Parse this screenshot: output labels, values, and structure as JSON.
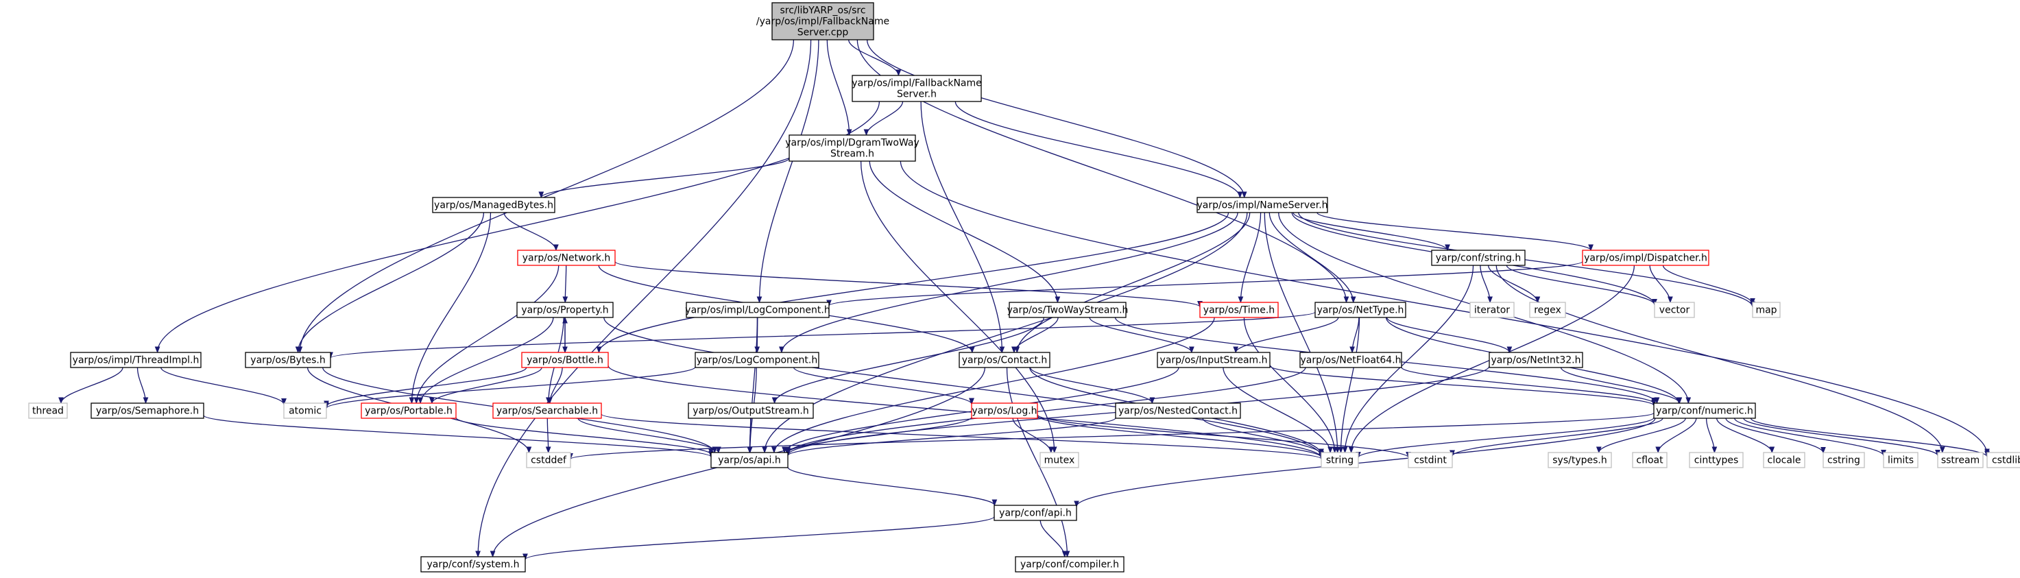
{
  "diagram": {
    "title": "",
    "colors": {
      "edge": "#191970",
      "root_fill": "#bfbfbf",
      "root_border": "#000000",
      "node_border": "#000000",
      "truncated_border": "#ff0000",
      "external_border": "#bfbfbf",
      "external_text": "#000000",
      "node_fill": "#ffffff"
    },
    "nodes": [
      {
        "id": "root",
        "kind": "root",
        "lines": [
          "src/libYARP_os/src",
          "/yarp/os/impl/FallbackName",
          "Server.cpp"
        ]
      },
      {
        "id": "fallback_h",
        "kind": "normal",
        "lines": [
          "yarp/os/impl/FallbackName",
          "Server.h"
        ]
      },
      {
        "id": "dgram",
        "kind": "normal",
        "lines": [
          "yarp/os/impl/DgramTwoWay",
          "Stream.h"
        ]
      },
      {
        "id": "managedbytes",
        "kind": "normal",
        "lines": [
          "yarp/os/ManagedBytes.h"
        ]
      },
      {
        "id": "nameserver",
        "kind": "normal",
        "lines": [
          "yarp/os/impl/NameServer.h"
        ]
      },
      {
        "id": "network",
        "kind": "truncated",
        "lines": [
          "yarp/os/Network.h"
        ]
      },
      {
        "id": "confstring",
        "kind": "normal",
        "lines": [
          "yarp/conf/string.h"
        ]
      },
      {
        "id": "dispatcher",
        "kind": "truncated",
        "lines": [
          "yarp/os/impl/Dispatcher.h"
        ]
      },
      {
        "id": "property",
        "kind": "normal",
        "lines": [
          "yarp/os/Property.h"
        ]
      },
      {
        "id": "logcomp_impl",
        "kind": "normal",
        "lines": [
          "yarp/os/impl/LogComponent.h"
        ]
      },
      {
        "id": "twowaystream",
        "kind": "normal",
        "lines": [
          "yarp/os/TwoWayStream.h"
        ]
      },
      {
        "id": "time",
        "kind": "truncated",
        "lines": [
          "yarp/os/Time.h"
        ]
      },
      {
        "id": "nettype",
        "kind": "normal",
        "lines": [
          "yarp/os/NetType.h"
        ]
      },
      {
        "id": "iterator",
        "kind": "external",
        "lines": [
          "iterator"
        ]
      },
      {
        "id": "regex",
        "kind": "external",
        "lines": [
          "regex"
        ]
      },
      {
        "id": "vector",
        "kind": "external",
        "lines": [
          "vector"
        ]
      },
      {
        "id": "map",
        "kind": "external",
        "lines": [
          "map"
        ]
      },
      {
        "id": "threadimpl",
        "kind": "normal",
        "lines": [
          "yarp/os/impl/ThreadImpl.h"
        ]
      },
      {
        "id": "bytes",
        "kind": "normal",
        "lines": [
          "yarp/os/Bytes.h"
        ]
      },
      {
        "id": "bottle",
        "kind": "truncated",
        "lines": [
          "yarp/os/Bottle.h"
        ]
      },
      {
        "id": "logcomp",
        "kind": "normal",
        "lines": [
          "yarp/os/LogComponent.h"
        ]
      },
      {
        "id": "contact",
        "kind": "normal",
        "lines": [
          "yarp/os/Contact.h"
        ]
      },
      {
        "id": "inputstream",
        "kind": "normal",
        "lines": [
          "yarp/os/InputStream.h"
        ]
      },
      {
        "id": "netfloat64",
        "kind": "normal",
        "lines": [
          "yarp/os/NetFloat64.h"
        ]
      },
      {
        "id": "netint32",
        "kind": "normal",
        "lines": [
          "yarp/os/NetInt32.h"
        ]
      },
      {
        "id": "thread",
        "kind": "external",
        "lines": [
          "thread"
        ]
      },
      {
        "id": "semaphore",
        "kind": "normal",
        "lines": [
          "yarp/os/Semaphore.h"
        ]
      },
      {
        "id": "atomic",
        "kind": "external",
        "lines": [
          "atomic"
        ]
      },
      {
        "id": "portable",
        "kind": "truncated",
        "lines": [
          "yarp/os/Portable.h"
        ]
      },
      {
        "id": "searchable",
        "kind": "truncated",
        "lines": [
          "yarp/os/Searchable.h"
        ]
      },
      {
        "id": "outputstream",
        "kind": "normal",
        "lines": [
          "yarp/os/OutputStream.h"
        ]
      },
      {
        "id": "log",
        "kind": "truncated",
        "lines": [
          "yarp/os/Log.h"
        ]
      },
      {
        "id": "nestedcontact",
        "kind": "normal",
        "lines": [
          "yarp/os/NestedContact.h"
        ]
      },
      {
        "id": "numeric",
        "kind": "normal",
        "lines": [
          "yarp/conf/numeric.h"
        ]
      },
      {
        "id": "cstddef",
        "kind": "external",
        "lines": [
          "cstddef"
        ]
      },
      {
        "id": "api",
        "kind": "normal",
        "lines": [
          "yarp/os/api.h"
        ]
      },
      {
        "id": "mutex",
        "kind": "external",
        "lines": [
          "mutex"
        ]
      },
      {
        "id": "string",
        "kind": "external",
        "lines": [
          "string"
        ]
      },
      {
        "id": "cstdint",
        "kind": "external",
        "lines": [
          "cstdint"
        ]
      },
      {
        "id": "systypes",
        "kind": "external",
        "lines": [
          "sys/types.h"
        ]
      },
      {
        "id": "cfloat",
        "kind": "external",
        "lines": [
          "cfloat"
        ]
      },
      {
        "id": "cinttypes",
        "kind": "external",
        "lines": [
          "cinttypes"
        ]
      },
      {
        "id": "clocale",
        "kind": "external",
        "lines": [
          "clocale"
        ]
      },
      {
        "id": "cstring",
        "kind": "external",
        "lines": [
          "cstring"
        ]
      },
      {
        "id": "limits",
        "kind": "external",
        "lines": [
          "limits"
        ]
      },
      {
        "id": "sstream",
        "kind": "external",
        "lines": [
          "sstream"
        ]
      },
      {
        "id": "cstdlib",
        "kind": "external",
        "lines": [
          "cstdlib"
        ]
      },
      {
        "id": "confapi",
        "kind": "normal",
        "lines": [
          "yarp/conf/api.h"
        ]
      },
      {
        "id": "confsystem",
        "kind": "normal",
        "lines": [
          "yarp/conf/system.h"
        ]
      },
      {
        "id": "confcompiler",
        "kind": "normal",
        "lines": [
          "yarp/conf/compiler.h"
        ]
      }
    ],
    "edges": [
      [
        "root",
        "fallback_h"
      ],
      [
        "root",
        "dgram"
      ],
      [
        "root",
        "nameserver"
      ],
      [
        "root",
        "logcomp_impl"
      ],
      [
        "root",
        "nettype"
      ],
      [
        "root",
        "bytes"
      ],
      [
        "root",
        "confsystem"
      ],
      [
        "fallback_h",
        "dgram"
      ],
      [
        "fallback_h",
        "nameserver"
      ],
      [
        "fallback_h",
        "contact"
      ],
      [
        "fallback_h",
        "threadimpl"
      ],
      [
        "dgram",
        "managedbytes"
      ],
      [
        "dgram",
        "twowaystream"
      ],
      [
        "dgram",
        "mutex"
      ],
      [
        "dgram",
        "cstdlib"
      ],
      [
        "managedbytes",
        "network"
      ],
      [
        "managedbytes",
        "bytes"
      ],
      [
        "managedbytes",
        "portable"
      ],
      [
        "network",
        "property"
      ],
      [
        "network",
        "time"
      ],
      [
        "network",
        "contact"
      ],
      [
        "network",
        "portable"
      ],
      [
        "nameserver",
        "confstring"
      ],
      [
        "nameserver",
        "dispatcher"
      ],
      [
        "nameserver",
        "time"
      ],
      [
        "nameserver",
        "nettype"
      ],
      [
        "nameserver",
        "contact"
      ],
      [
        "nameserver",
        "logcomp"
      ],
      [
        "nameserver",
        "bottle"
      ],
      [
        "nameserver",
        "vector"
      ],
      [
        "nameserver",
        "map"
      ],
      [
        "nameserver",
        "string"
      ],
      [
        "nameserver",
        "numeric"
      ],
      [
        "nameserver",
        "api"
      ],
      [
        "confstring",
        "iterator"
      ],
      [
        "confstring",
        "regex"
      ],
      [
        "confstring",
        "vector"
      ],
      [
        "confstring",
        "string"
      ],
      [
        "confstring",
        "sstream"
      ],
      [
        "dispatcher",
        "vector"
      ],
      [
        "dispatcher",
        "map"
      ],
      [
        "dispatcher",
        "string"
      ],
      [
        "dispatcher",
        "logcomp_impl"
      ],
      [
        "property",
        "bottle"
      ],
      [
        "property",
        "searchable"
      ],
      [
        "property",
        "portable"
      ],
      [
        "property",
        "string"
      ],
      [
        "logcomp_impl",
        "logcomp"
      ],
      [
        "logcomp_impl",
        "api"
      ],
      [
        "twowaystream",
        "contact"
      ],
      [
        "twowaystream",
        "inputstream"
      ],
      [
        "twowaystream",
        "outputstream"
      ],
      [
        "twowaystream",
        "numeric"
      ],
      [
        "time",
        "api"
      ],
      [
        "time",
        "string"
      ],
      [
        "nettype",
        "inputstream"
      ],
      [
        "nettype",
        "netfloat64"
      ],
      [
        "nettype",
        "netint32"
      ],
      [
        "nettype",
        "string"
      ],
      [
        "nettype",
        "bytes"
      ],
      [
        "nettype",
        "numeric"
      ],
      [
        "threadimpl",
        "thread"
      ],
      [
        "threadimpl",
        "semaphore"
      ],
      [
        "threadimpl",
        "atomic"
      ],
      [
        "bytes",
        "api"
      ],
      [
        "bytes",
        "cstddef"
      ],
      [
        "bottle",
        "property"
      ],
      [
        "bottle",
        "searchable"
      ],
      [
        "bottle",
        "portable"
      ],
      [
        "bottle",
        "string"
      ],
      [
        "bottle",
        "atomic"
      ],
      [
        "logcomp",
        "log"
      ],
      [
        "logcomp",
        "api"
      ],
      [
        "logcomp",
        "atomic"
      ],
      [
        "contact",
        "nestedcontact"
      ],
      [
        "contact",
        "string"
      ],
      [
        "contact",
        "confsystem"
      ],
      [
        "contact",
        "confcompiler"
      ],
      [
        "inputstream",
        "api"
      ],
      [
        "inputstream",
        "numeric"
      ],
      [
        "inputstream",
        "string"
      ],
      [
        "netfloat64",
        "numeric"
      ],
      [
        "netfloat64",
        "api"
      ],
      [
        "netint32",
        "numeric"
      ],
      [
        "netint32",
        "api"
      ],
      [
        "semaphore",
        "api"
      ],
      [
        "portable",
        "api"
      ],
      [
        "searchable",
        "api"
      ],
      [
        "searchable",
        "cstddef"
      ],
      [
        "searchable",
        "string"
      ],
      [
        "outputstream",
        "api"
      ],
      [
        "log",
        "api"
      ],
      [
        "log",
        "mutex"
      ],
      [
        "log",
        "cstdint"
      ],
      [
        "log",
        "string"
      ],
      [
        "nestedcontact",
        "api"
      ],
      [
        "nestedcontact",
        "string"
      ],
      [
        "numeric",
        "string"
      ],
      [
        "numeric",
        "cstdint"
      ],
      [
        "numeric",
        "cstddef"
      ],
      [
        "numeric",
        "systypes"
      ],
      [
        "numeric",
        "cfloat"
      ],
      [
        "numeric",
        "cinttypes"
      ],
      [
        "numeric",
        "clocale"
      ],
      [
        "numeric",
        "cstring"
      ],
      [
        "numeric",
        "limits"
      ],
      [
        "numeric",
        "sstream"
      ],
      [
        "numeric",
        "cstdlib"
      ],
      [
        "numeric",
        "confapi"
      ],
      [
        "api",
        "confapi"
      ],
      [
        "confapi",
        "confsystem"
      ],
      [
        "confapi",
        "confcompiler"
      ]
    ]
  }
}
